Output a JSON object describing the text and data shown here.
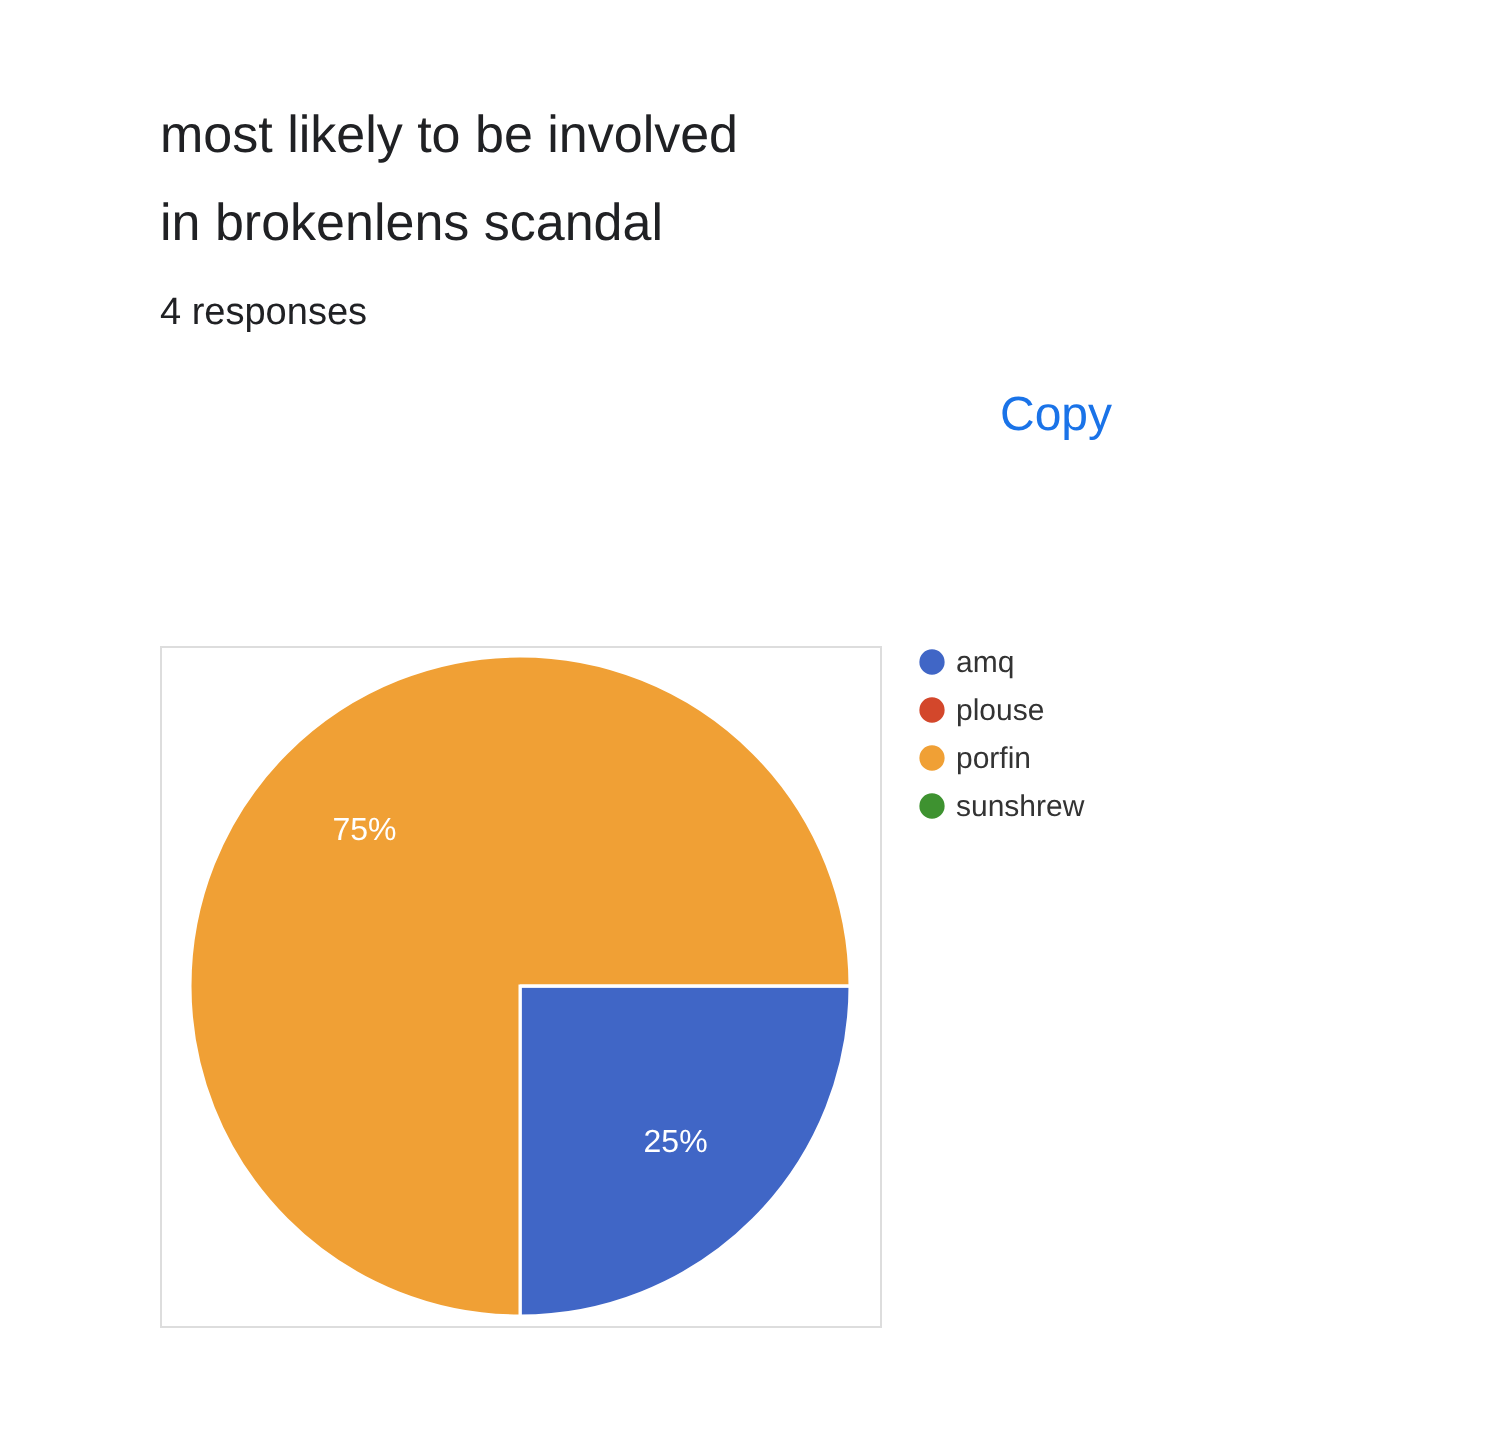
{
  "chart_data": {
    "type": "pie",
    "title": "most likely to be involved in brokenlens scandal",
    "subtitle": "4 responses",
    "categories": [
      "amq",
      "plouse",
      "porfin",
      "sunshrew"
    ],
    "values": [
      25,
      0,
      75,
      0
    ],
    "colors": [
      "#4066c6",
      "#d3472b",
      "#f0a035",
      "#3e9230"
    ],
    "value_labels": [
      "25%",
      null,
      "75%",
      null
    ],
    "legend": "right",
    "annotations": [
      "Copy"
    ]
  }
}
